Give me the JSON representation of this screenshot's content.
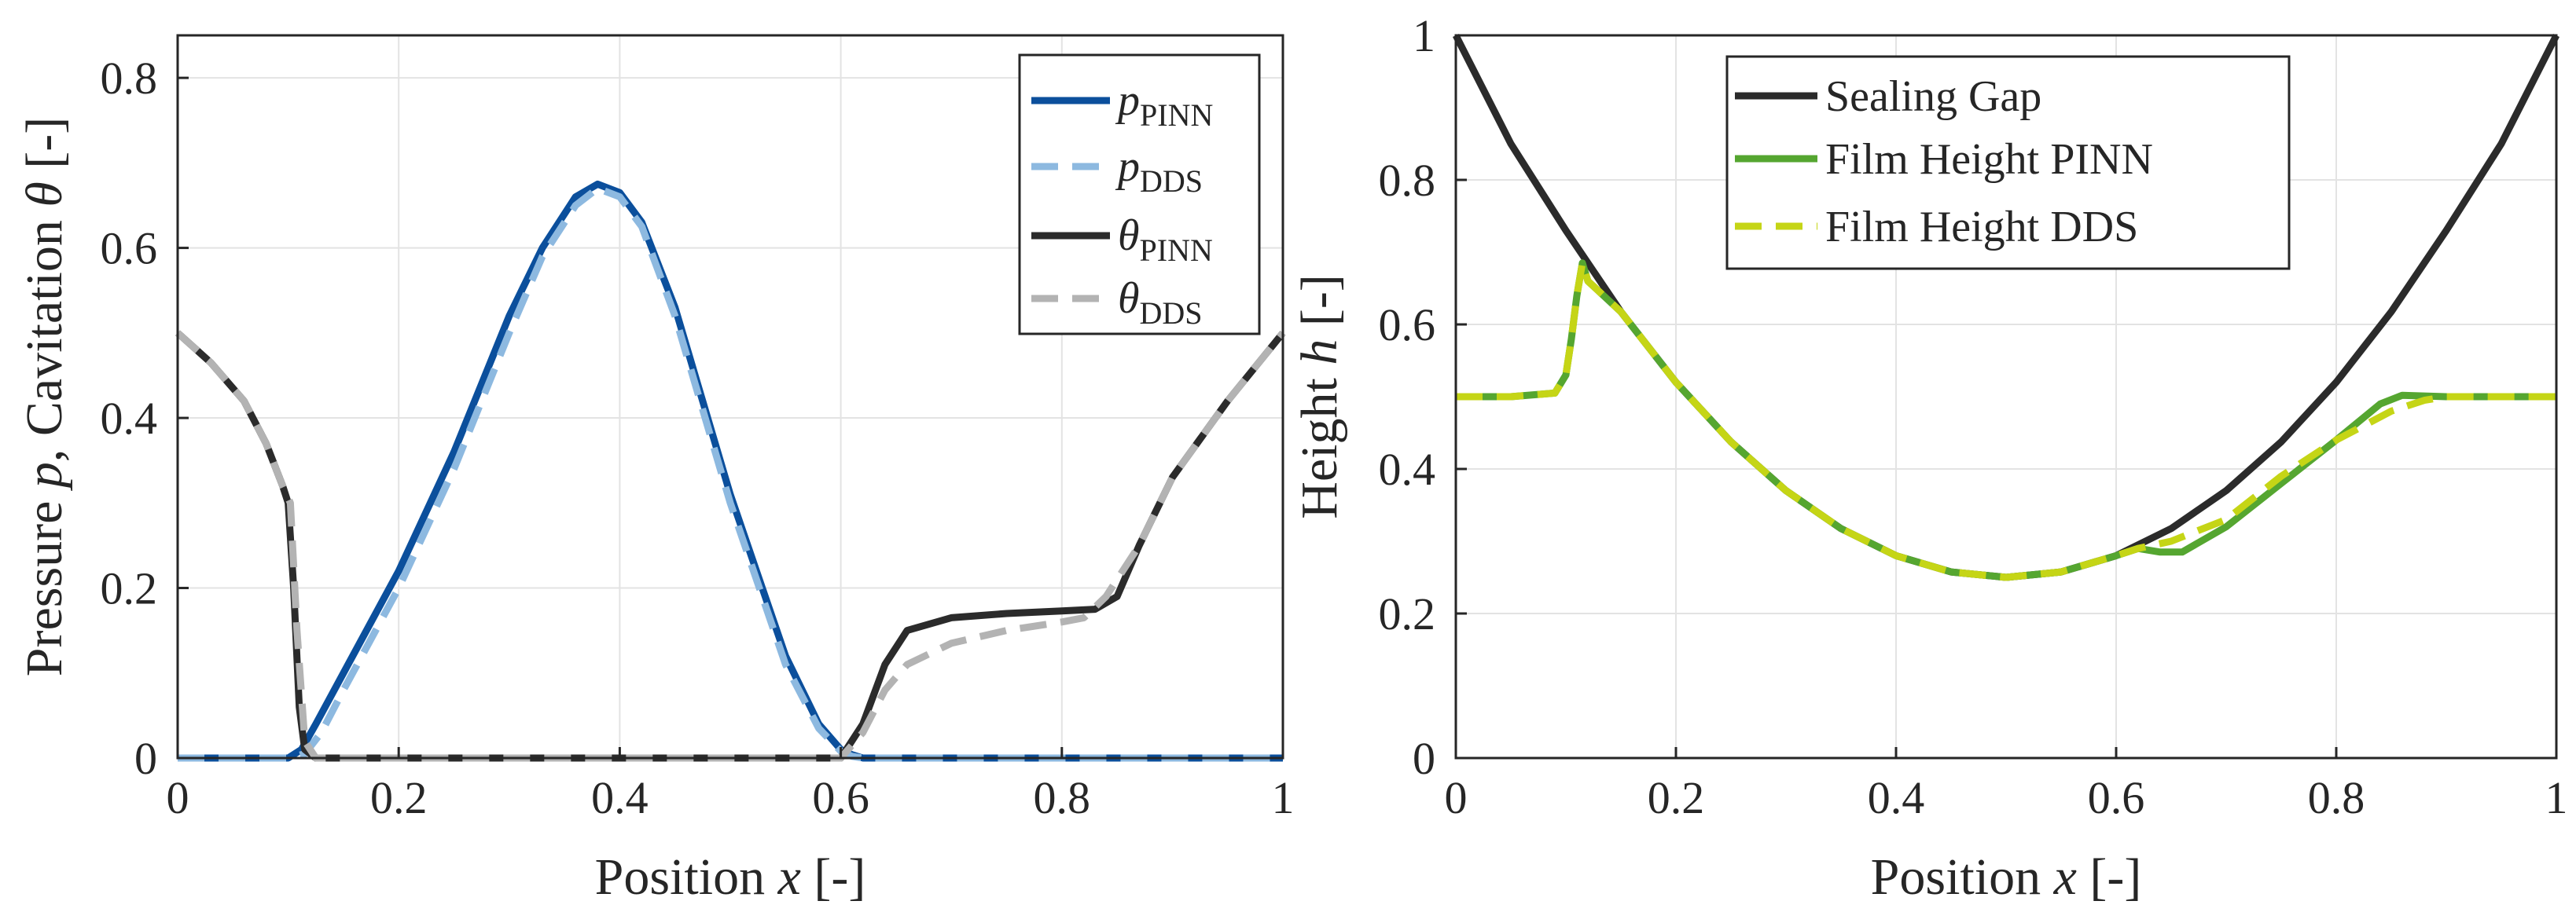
{
  "chart_data": [
    {
      "type": "line",
      "xlabel": "Position",
      "xlabel_var": "x",
      "xlabel_unit": "[-]",
      "ylabel": "Pressure",
      "ylabel_var_p": "p",
      "ylabel_mid": ", Cavitation",
      "ylabel_var_theta": "θ",
      "ylabel_unit": "[-]",
      "xlim": [
        0,
        1
      ],
      "ylim": [
        0,
        0.85
      ],
      "xticks": [
        "0",
        "0.2",
        "0.4",
        "0.6",
        "0.8",
        "1"
      ],
      "yticks": [
        "0",
        "0.2",
        "0.4",
        "0.6",
        "0.8"
      ],
      "grid": true,
      "legend_position": "top-right",
      "legend": [
        {
          "sym": "p",
          "sub": "PINN"
        },
        {
          "sym": "p",
          "sub": "DDS"
        },
        {
          "sym": "θ",
          "sub": "PINN"
        },
        {
          "sym": "θ",
          "sub": "DDS"
        }
      ],
      "series": [
        {
          "name": "p_PINN",
          "color": "#0b4f9c",
          "style": "solid",
          "x": [
            0,
            0.1,
            0.112,
            0.125,
            0.15,
            0.2,
            0.25,
            0.3,
            0.33,
            0.36,
            0.38,
            0.4,
            0.42,
            0.45,
            0.5,
            0.55,
            0.58,
            0.6,
            0.61,
            0.62,
            1.0
          ],
          "y": [
            0,
            0,
            0.01,
            0.04,
            0.1,
            0.22,
            0.36,
            0.52,
            0.6,
            0.66,
            0.675,
            0.665,
            0.63,
            0.53,
            0.31,
            0.12,
            0.04,
            0.01,
            0.004,
            0,
            0
          ]
        },
        {
          "name": "p_DDS",
          "color": "#8db9e0",
          "style": "dashed",
          "x": [
            0,
            0.1,
            0.115,
            0.13,
            0.15,
            0.2,
            0.25,
            0.3,
            0.33,
            0.36,
            0.38,
            0.4,
            0.42,
            0.45,
            0.5,
            0.55,
            0.58,
            0.6,
            0.61,
            0.62,
            1.0
          ],
          "y": [
            0,
            0,
            0.005,
            0.03,
            0.08,
            0.2,
            0.34,
            0.5,
            0.59,
            0.65,
            0.67,
            0.66,
            0.625,
            0.52,
            0.3,
            0.11,
            0.035,
            0.008,
            0.002,
            0,
            0
          ]
        },
        {
          "name": "theta_PINN",
          "color": "#2b2b2b",
          "style": "solid",
          "x": [
            0,
            0.03,
            0.06,
            0.08,
            0.095,
            0.1,
            0.105,
            0.11,
            0.115,
            0.125,
            0.14,
            0.6,
            0.62,
            0.64,
            0.66,
            0.7,
            0.75,
            0.8,
            0.83,
            0.85,
            0.87,
            0.9,
            0.95,
            1.0
          ],
          "y": [
            0.5,
            0.465,
            0.42,
            0.37,
            0.32,
            0.3,
            0.2,
            0.06,
            0.01,
            0,
            0,
            0,
            0.04,
            0.11,
            0.15,
            0.165,
            0.17,
            0.173,
            0.175,
            0.19,
            0.25,
            0.33,
            0.42,
            0.5
          ]
        },
        {
          "name": "theta_DDS",
          "color": "#b3b3b3",
          "style": "dashed",
          "x": [
            0,
            0.03,
            0.06,
            0.08,
            0.095,
            0.102,
            0.108,
            0.115,
            0.125,
            0.14,
            0.6,
            0.62,
            0.64,
            0.66,
            0.7,
            0.75,
            0.8,
            0.82,
            0.84,
            0.87,
            0.9,
            0.95,
            1.0
          ],
          "y": [
            0.5,
            0.465,
            0.42,
            0.37,
            0.32,
            0.3,
            0.15,
            0.02,
            0,
            0,
            0,
            0.03,
            0.08,
            0.11,
            0.135,
            0.15,
            0.16,
            0.165,
            0.19,
            0.25,
            0.33,
            0.42,
            0.5
          ]
        }
      ]
    },
    {
      "type": "line",
      "xlabel": "Position",
      "xlabel_var": "x",
      "xlabel_unit": "[-]",
      "ylabel": "Height",
      "ylabel_var": "h",
      "ylabel_unit": "[-]",
      "xlim": [
        0,
        1
      ],
      "ylim": [
        0,
        1
      ],
      "xticks": [
        "0",
        "0.2",
        "0.4",
        "0.6",
        "0.8",
        "1"
      ],
      "yticks": [
        "0",
        "0.2",
        "0.4",
        "0.6",
        "0.8",
        "1"
      ],
      "grid": true,
      "legend_position": "top-center",
      "legend": [
        "Sealing Gap",
        "Film Height PINN",
        "Film Height DDS"
      ],
      "series": [
        {
          "name": "Sealing Gap",
          "color": "#2b2b2b",
          "style": "solid",
          "x": [
            0,
            0.05,
            0.1,
            0.15,
            0.2,
            0.25,
            0.3,
            0.35,
            0.4,
            0.45,
            0.5,
            0.55,
            0.6,
            0.65,
            0.7,
            0.75,
            0.8,
            0.85,
            0.9,
            0.95,
            1.0
          ],
          "y": [
            1.0,
            0.85,
            0.73,
            0.6175,
            0.52,
            0.4375,
            0.37,
            0.3175,
            0.28,
            0.2575,
            0.25,
            0.2575,
            0.28,
            0.3175,
            0.37,
            0.4375,
            0.52,
            0.6175,
            0.73,
            0.85,
            1.0
          ]
        },
        {
          "name": "Film Height PINN",
          "color": "#55a630",
          "style": "solid",
          "x": [
            0,
            0.05,
            0.09,
            0.1,
            0.105,
            0.11,
            0.115,
            0.12,
            0.15,
            0.2,
            0.25,
            0.3,
            0.35,
            0.4,
            0.45,
            0.5,
            0.55,
            0.6,
            0.62,
            0.64,
            0.66,
            0.7,
            0.75,
            0.8,
            0.84,
            0.86,
            0.9,
            1.0
          ],
          "y": [
            0.5,
            0.5,
            0.505,
            0.53,
            0.58,
            0.64,
            0.685,
            0.66,
            0.6175,
            0.52,
            0.4375,
            0.37,
            0.3175,
            0.28,
            0.2575,
            0.25,
            0.2575,
            0.28,
            0.29,
            0.285,
            0.285,
            0.32,
            0.38,
            0.44,
            0.49,
            0.502,
            0.5,
            0.5
          ]
        },
        {
          "name": "Film Height DDS",
          "color": "#c5d516",
          "style": "dashed",
          "x": [
            0,
            0.05,
            0.09,
            0.1,
            0.105,
            0.11,
            0.115,
            0.12,
            0.15,
            0.2,
            0.25,
            0.3,
            0.35,
            0.4,
            0.45,
            0.5,
            0.55,
            0.6,
            0.62,
            0.65,
            0.7,
            0.75,
            0.8,
            0.85,
            0.88,
            0.9,
            1.0
          ],
          "y": [
            0.5,
            0.5,
            0.505,
            0.53,
            0.58,
            0.64,
            0.685,
            0.66,
            0.6175,
            0.52,
            0.4375,
            0.37,
            0.3175,
            0.28,
            0.2575,
            0.25,
            0.2575,
            0.28,
            0.29,
            0.3,
            0.33,
            0.39,
            0.44,
            0.48,
            0.495,
            0.5,
            0.5
          ]
        }
      ]
    }
  ]
}
